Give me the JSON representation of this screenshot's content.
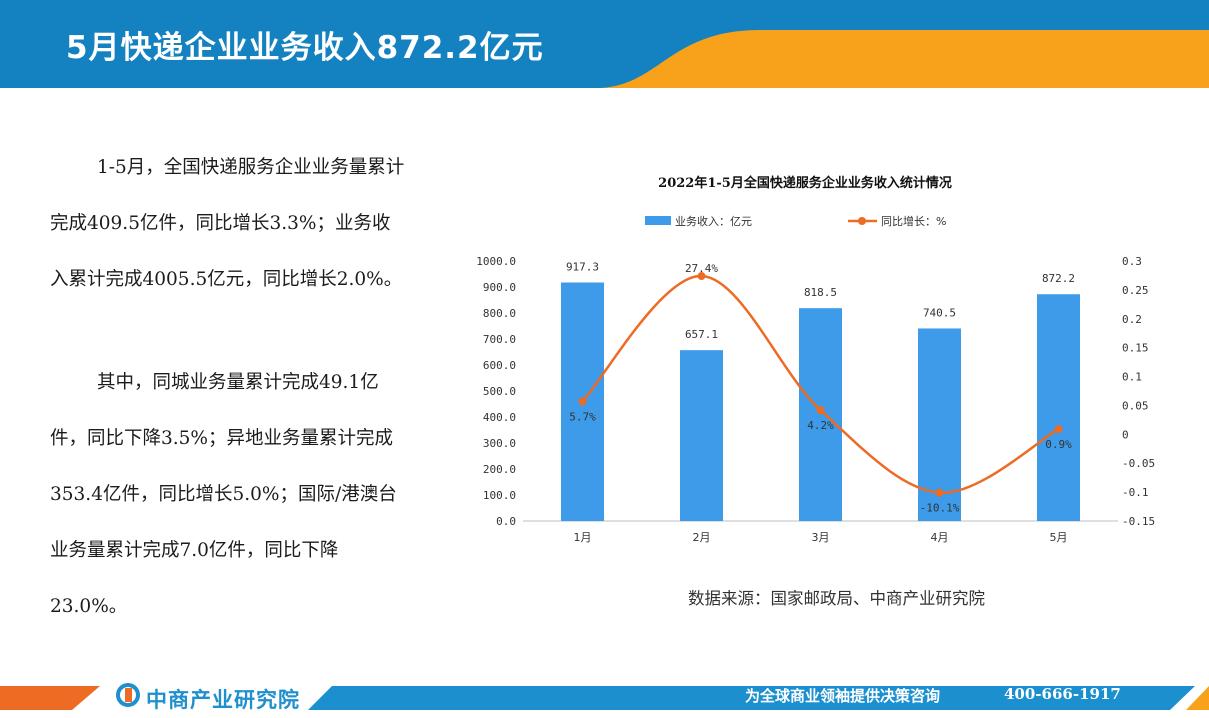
{
  "header": {
    "title": "5月快递企业业务收入872.2亿元",
    "colors": {
      "blue": "#1482c1",
      "orange": "#f7a21a"
    }
  },
  "text": {
    "para1": "1-5月，全国快递服务企业业务量累计完成409.5亿件，同比增长3.3%；业务收入累计完成4005.5亿元，同比增长2.0%。",
    "para2": "其中，同城业务量累计完成49.1亿件，同比下降3.5%；异地业务量累计完成353.4亿件，同比增长5.0%；国际/港澳台业务量累计完成7.0亿件，同比下降23.0%。"
  },
  "chart_data": {
    "type": "bar",
    "title": "2022年1-5月全国快递服务企业业务收入统计情况",
    "categories": [
      "1月",
      "2月",
      "3月",
      "4月",
      "5月"
    ],
    "series": [
      {
        "name": "业务收入：亿元",
        "kind": "bar",
        "axis": "left",
        "color": "#3d9be9",
        "values": [
          917.3,
          657.1,
          818.5,
          740.5,
          872.2
        ],
        "labels": [
          "917.3",
          "657.1",
          "818.5",
          "740.5",
          "872.2"
        ]
      },
      {
        "name": "同比增长：%",
        "kind": "line",
        "axis": "right",
        "color": "#ed6b23",
        "values": [
          0.057,
          0.274,
          0.042,
          -0.101,
          0.009
        ],
        "labels": [
          "5.7%",
          "27.4%",
          "4.2%",
          "-10.1%",
          "0.9%"
        ]
      }
    ],
    "y_left": {
      "min": 0,
      "max": 1000,
      "ticks": [
        "0.0",
        "100.0",
        "200.0",
        "300.0",
        "400.0",
        "500.0",
        "600.0",
        "700.0",
        "800.0",
        "900.0",
        "1000.0"
      ]
    },
    "y_right": {
      "min": -0.15,
      "max": 0.3,
      "ticks": [
        "-0.15",
        "-0.1",
        "-0.05",
        "0",
        "0.05",
        "0.1",
        "0.15",
        "0.2",
        "0.25",
        "0.3"
      ]
    },
    "grid": false,
    "legend_position": "top"
  },
  "source": "数据来源：国家邮政局、中商产业研究院",
  "footer": {
    "logo_text": "中商产业研究院",
    "slogan": "为全球商业领袖提供决策咨询",
    "phone": "400-666-1917"
  }
}
